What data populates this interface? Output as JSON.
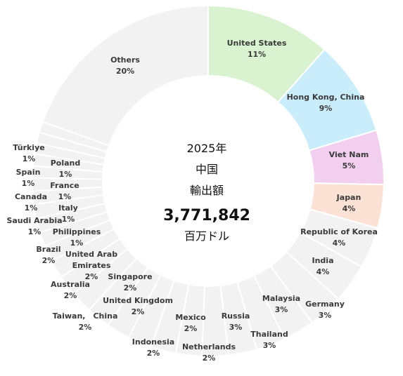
{
  "chart_data": {
    "type": "pie",
    "donut": true,
    "center": {
      "line1": "2025年",
      "line2": "中国",
      "line3": "輸出額",
      "value": "3,771,842",
      "unit": "百万ドル"
    },
    "slices": [
      {
        "label": "United States",
        "pct_label": "11%",
        "value": 11.5,
        "color": "#d9f2d0"
      },
      {
        "label": "Hong Kong, China",
        "pct_label": "9%",
        "value": 8.8,
        "color": "#caedfb"
      },
      {
        "label": "Viet Nam",
        "pct_label": "5%",
        "value": 5.0,
        "color": "#f2cfee"
      },
      {
        "label": "Japan",
        "pct_label": "4%",
        "value": 4.0,
        "color": "#fbe2d5"
      },
      {
        "label": "Republic of Korea",
        "pct_label": "4%",
        "value": 3.8,
        "color": "#f2f2f2"
      },
      {
        "label": "India",
        "pct_label": "4%",
        "value": 3.6,
        "color": "#f2f2f2"
      },
      {
        "label": "Germany",
        "pct_label": "3%",
        "value": 3.2,
        "color": "#f2f2f2"
      },
      {
        "label": "Malaysia",
        "pct_label": "3%",
        "value": 2.9,
        "color": "#f2f2f2"
      },
      {
        "label": "Thailand",
        "pct_label": "3%",
        "value": 2.7,
        "color": "#f2f2f2"
      },
      {
        "label": "Russia",
        "pct_label": "3%",
        "value": 2.6,
        "color": "#f2f2f2"
      },
      {
        "label": "Netherlands",
        "pct_label": "2%",
        "value": 2.4,
        "color": "#f2f2f2"
      },
      {
        "label": "Mexico",
        "pct_label": "2%",
        "value": 2.4,
        "color": "#f2f2f2"
      },
      {
        "label": "Indonesia",
        "pct_label": "2%",
        "value": 2.3,
        "color": "#f2f2f2"
      },
      {
        "label": "United Kingdom",
        "pct_label": "2%",
        "value": 2.2,
        "color": "#f2f2f2"
      },
      {
        "label": "Taiwan,　China",
        "pct_label": "2%",
        "value": 2.2,
        "color": "#f2f2f2"
      },
      {
        "label": "Singapore",
        "pct_label": "2%",
        "value": 2.2,
        "color": "#f2f2f2"
      },
      {
        "label": "Australia",
        "pct_label": "2%",
        "value": 2.0,
        "color": "#f2f2f2"
      },
      {
        "label": "United Arab Emirates",
        "pct_label": "2%",
        "value": 1.9,
        "color": "#f2f2f2"
      },
      {
        "label": "Brazil",
        "pct_label": "2%",
        "value": 1.7,
        "color": "#f2f2f2"
      },
      {
        "label": "Philippines",
        "pct_label": "1%",
        "value": 1.5,
        "color": "#f2f2f2"
      },
      {
        "label": "Saudi Arabia",
        "pct_label": "1%",
        "value": 1.3,
        "color": "#f2f2f2"
      },
      {
        "label": "Italy",
        "pct_label": "1%",
        "value": 1.3,
        "color": "#f2f2f2"
      },
      {
        "label": "Canada",
        "pct_label": "1%",
        "value": 1.3,
        "color": "#f2f2f2"
      },
      {
        "label": "France",
        "pct_label": "1%",
        "value": 1.2,
        "color": "#f2f2f2"
      },
      {
        "label": "Spain",
        "pct_label": "1%",
        "value": 1.2,
        "color": "#f2f2f2"
      },
      {
        "label": "Poland",
        "pct_label": "1%",
        "value": 1.1,
        "color": "#f2f2f2"
      },
      {
        "label": "Türkiye",
        "pct_label": "1%",
        "value": 1.1,
        "color": "#f2f2f2"
      },
      {
        "label": "",
        "pct_label": "",
        "value": 1.0,
        "color": "#f2f2f2"
      },
      {
        "label": "",
        "pct_label": "",
        "value": 1.0,
        "color": "#f2f2f2"
      },
      {
        "label": "",
        "pct_label": "",
        "value": 1.0,
        "color": "#f2f2f2"
      },
      {
        "label": "Others",
        "pct_label": "20%",
        "value": 19.5,
        "color": "#f2f2f2"
      }
    ]
  }
}
